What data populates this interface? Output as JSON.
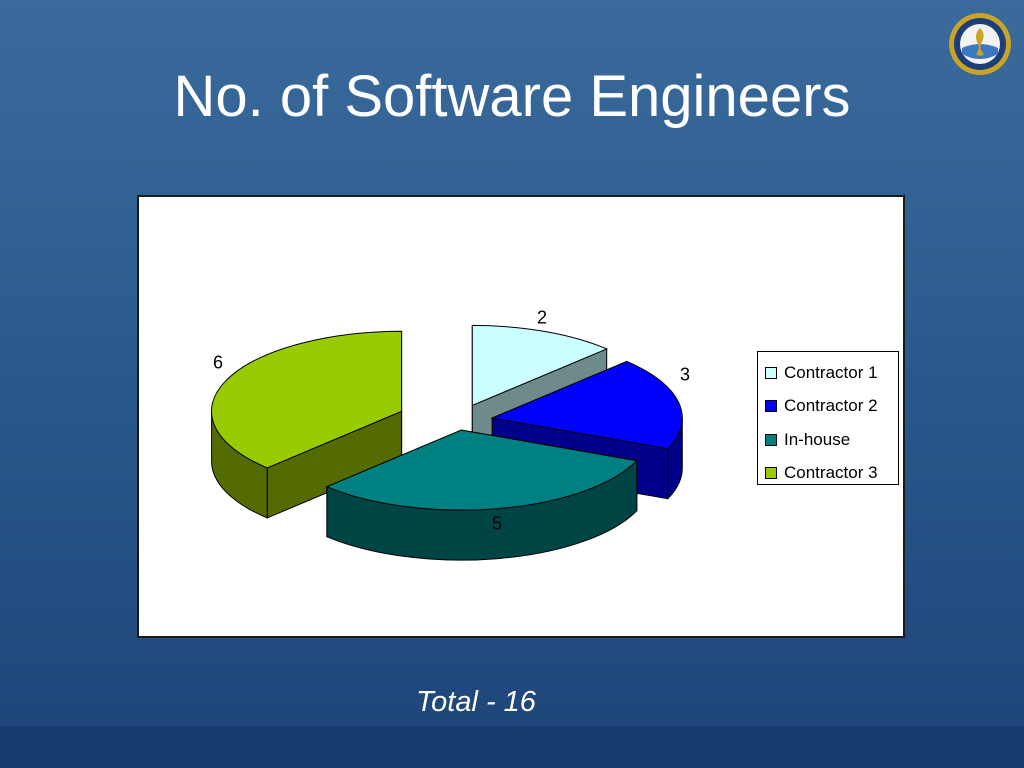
{
  "slide": {
    "title": "No. of Software Engineers",
    "footer": "Total - 16",
    "seal_icon": "navy-seal-emblem"
  },
  "chart_data": {
    "type": "pie",
    "style": "3d-exploded",
    "categories": [
      "Contractor 1",
      "Contractor 2",
      "In-house",
      "Contractor 3"
    ],
    "values": [
      2,
      3,
      5,
      6
    ],
    "data_labels": [
      "2",
      "3",
      "5",
      "6"
    ],
    "colors": [
      "#ccffff",
      "#0000ff",
      "#008080",
      "#99cc00"
    ],
    "side_colors": [
      "#6e8a8a",
      "#00008a",
      "#004545",
      "#536b00"
    ],
    "legend": {
      "position": "right",
      "entries": [
        "Contractor 1",
        "Contractor 2",
        "In-house",
        "Contractor 3"
      ]
    }
  }
}
